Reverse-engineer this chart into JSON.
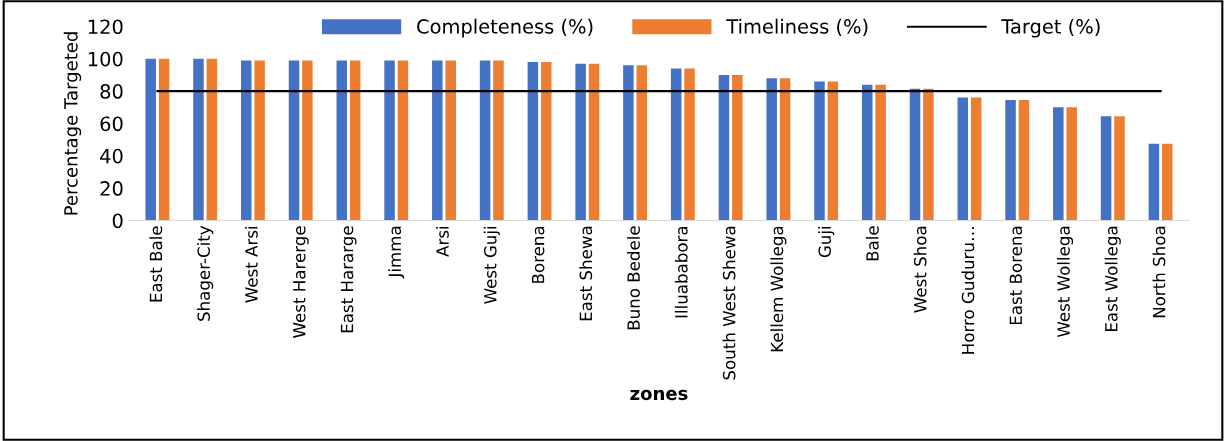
{
  "chart_data": {
    "type": "bar",
    "xlabel": "zones",
    "ylabel": "Percentage Targeted",
    "categories": [
      "East Bale",
      "Shager-City",
      "West Arsi",
      "West Harerge",
      "East Hararge",
      "Jimma",
      "Arsi",
      "West Guji",
      "Borena",
      "East Shewa",
      "Buno Bedele",
      "Illuababora",
      "South West Shewa",
      "Kellem Wollega",
      "Guji",
      "Bale",
      "West Shoa",
      "Horro Guduru…",
      "East Borena",
      "West Wollega",
      "East Wollega",
      "North Shoa"
    ],
    "series": [
      {
        "name": "Completeness (%)",
        "color": "#4472c4",
        "values": [
          100,
          100,
          99,
          99,
          99,
          99,
          99,
          99,
          98,
          97,
          96,
          94,
          90,
          88,
          86,
          84,
          81.5,
          76,
          74.5,
          70,
          64.5,
          47.5
        ]
      },
      {
        "name": "Timeliness (%)",
        "color": "#ed7d31",
        "values": [
          100,
          100,
          99,
          99,
          99,
          99,
          99,
          99,
          98,
          97,
          96,
          94,
          90,
          88,
          86,
          84,
          81.5,
          76,
          74.5,
          70,
          64.5,
          47.5
        ]
      }
    ],
    "ref_lines": [
      {
        "axis": "y",
        "value": 80,
        "label": "Target (%)",
        "color": "#000000",
        "line_style": "solid"
      }
    ],
    "ylim": [
      0,
      120
    ],
    "yticks": [
      0,
      20,
      40,
      60,
      80,
      100,
      120
    ],
    "grid": false,
    "legend": "top"
  }
}
